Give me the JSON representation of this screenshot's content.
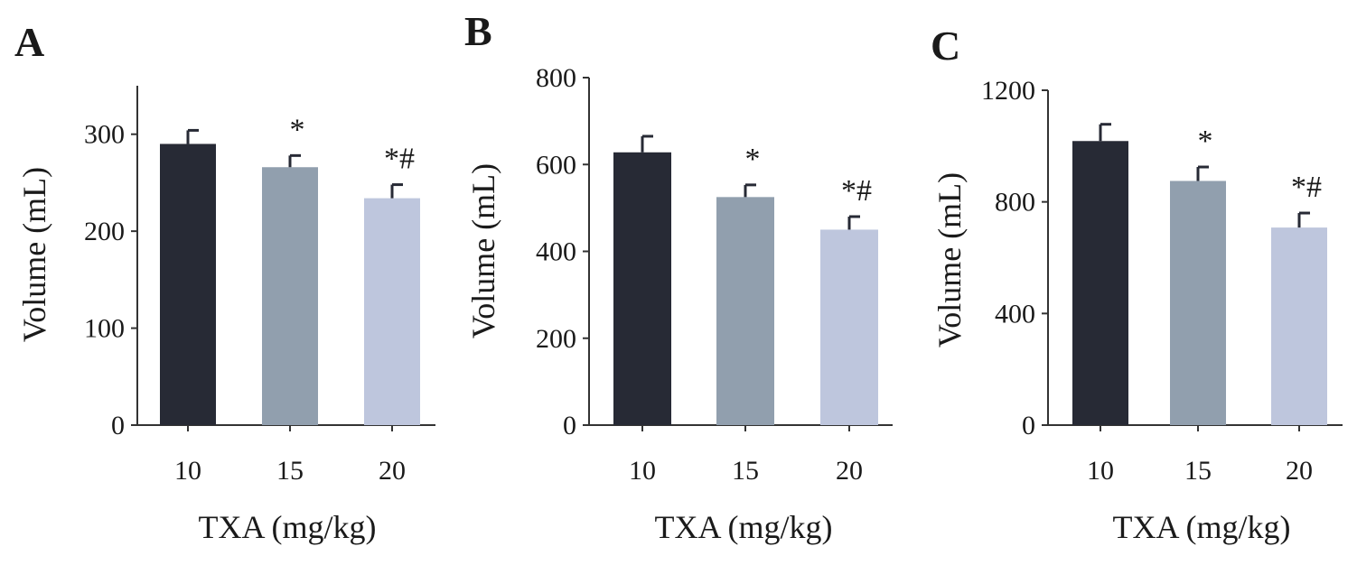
{
  "colors": {
    "bar_10": "#272a35",
    "bar_15": "#919fae",
    "bar_20": "#bec6dd",
    "axis": "#333333",
    "text": "#1a1a1a"
  },
  "chart_data": [
    {
      "panel": "A",
      "type": "bar",
      "xlabel": "TXA (mg/kg)",
      "ylabel": "Volume (mL)",
      "categories": [
        "10",
        "15",
        "20"
      ],
      "values": [
        290,
        266,
        234
      ],
      "errors": [
        14,
        12,
        14
      ],
      "significance": [
        "",
        "*",
        "*#"
      ],
      "ylim": [
        0,
        350
      ],
      "yticks": [
        0,
        100,
        200,
        300
      ]
    },
    {
      "panel": "B",
      "type": "bar",
      "xlabel": "TXA (mg/kg)",
      "ylabel": "Volume (mL)",
      "categories": [
        "10",
        "15",
        "20"
      ],
      "values": [
        628,
        525,
        450
      ],
      "errors": [
        37,
        28,
        30
      ],
      "significance": [
        "",
        "*",
        "*#"
      ],
      "ylim": [
        0,
        800
      ],
      "yticks": [
        0,
        200,
        400,
        600,
        800
      ]
    },
    {
      "panel": "C",
      "type": "bar",
      "xlabel": "TXA (mg/kg)",
      "ylabel": "Volume (mL)",
      "categories": [
        "10",
        "15",
        "20"
      ],
      "values": [
        1018,
        875,
        708
      ],
      "errors": [
        60,
        50,
        52
      ],
      "significance": [
        "",
        "*",
        "*#"
      ],
      "ylim": [
        0,
        1200
      ],
      "yticks": [
        0,
        400,
        800,
        1200
      ]
    }
  ]
}
